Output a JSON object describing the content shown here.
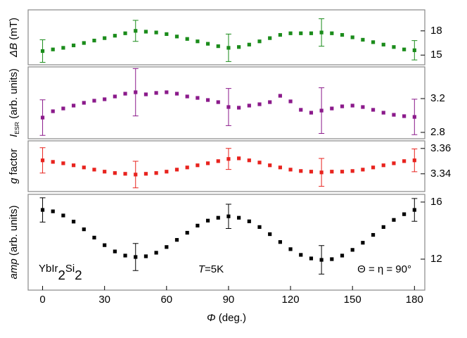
{
  "chart_data": {
    "type": "scatter",
    "x": [
      0,
      5,
      10,
      15,
      20,
      25,
      30,
      35,
      40,
      45,
      50,
      55,
      60,
      65,
      70,
      75,
      80,
      85,
      90,
      95,
      100,
      105,
      110,
      115,
      120,
      125,
      130,
      135,
      140,
      145,
      150,
      155,
      160,
      165,
      170,
      175,
      180
    ],
    "xlim": [
      -7,
      185
    ],
    "xticks": [
      0,
      30,
      60,
      90,
      120,
      150,
      180
    ],
    "xlabel": [
      {
        "text": "Φ",
        "style": "italic"
      },
      {
        "text": " (deg.)"
      }
    ],
    "panels": [
      {
        "ylabel": [
          {
            "text": "ΔB",
            "style": "italic"
          },
          {
            "text": " (mT)"
          }
        ],
        "color": "#1b8c1b",
        "values": [
          15.5,
          15.7,
          15.9,
          16.2,
          16.5,
          16.8,
          17.1,
          17.4,
          17.7,
          18.0,
          17.9,
          17.8,
          17.6,
          17.3,
          17.0,
          16.7,
          16.4,
          16.1,
          15.9,
          16.0,
          16.3,
          16.7,
          17.1,
          17.5,
          17.7,
          17.7,
          17.7,
          17.8,
          17.7,
          17.5,
          17.2,
          16.9,
          16.6,
          16.3,
          16.0,
          15.7,
          15.6
        ],
        "errors": [
          1.4,
          null,
          null,
          null,
          null,
          null,
          null,
          null,
          null,
          1.3,
          null,
          null,
          null,
          null,
          null,
          null,
          null,
          null,
          1.7,
          null,
          null,
          null,
          null,
          null,
          null,
          null,
          null,
          1.7,
          null,
          null,
          null,
          null,
          null,
          null,
          null,
          null,
          1.2
        ],
        "ylim": [
          13.8,
          20.6
        ],
        "yticks": [
          15,
          18
        ]
      },
      {
        "ylabel": [
          {
            "text": "I",
            "style": "italic"
          },
          {
            "text": "ESR",
            "style": "sub"
          },
          {
            "text": " (arb. units)"
          }
        ],
        "color": "#8b1a8b",
        "values": [
          2.975,
          3.05,
          3.083,
          3.117,
          3.15,
          3.175,
          3.192,
          3.225,
          3.258,
          3.275,
          3.25,
          3.267,
          3.275,
          3.258,
          3.225,
          3.208,
          3.183,
          3.158,
          3.1,
          3.092,
          3.117,
          3.133,
          3.158,
          3.233,
          3.167,
          3.067,
          3.033,
          3.058,
          3.083,
          3.108,
          3.117,
          3.1,
          3.067,
          3.033,
          3.008,
          2.992,
          2.983
        ],
        "errors": [
          0.21,
          null,
          null,
          null,
          null,
          null,
          null,
          null,
          null,
          0.28,
          null,
          null,
          null,
          null,
          null,
          null,
          null,
          null,
          0.22,
          null,
          null,
          null,
          null,
          null,
          null,
          null,
          null,
          0.27,
          null,
          null,
          null,
          null,
          null,
          null,
          null,
          null,
          0.21
        ],
        "ylim": [
          2.725,
          3.575
        ],
        "yticks": [
          2.8,
          3.2
        ]
      },
      {
        "ylabel": [
          {
            "text": "g",
            "style": "italic"
          },
          {
            "text": " factor"
          }
        ],
        "color": "#e8231e",
        "values": [
          3.3506,
          3.3494,
          3.3483,
          3.3467,
          3.345,
          3.3433,
          3.3417,
          3.3406,
          3.34,
          3.3394,
          3.34,
          3.3406,
          3.3417,
          3.3433,
          3.345,
          3.3467,
          3.3483,
          3.35,
          3.3517,
          3.3522,
          3.3506,
          3.3489,
          3.3467,
          3.345,
          3.3433,
          3.3422,
          3.3417,
          3.3411,
          3.3417,
          3.3417,
          3.3422,
          3.3433,
          3.345,
          3.3467,
          3.3483,
          3.35,
          3.3506
        ],
        "errors": [
          0.01,
          null,
          null,
          null,
          null,
          null,
          null,
          null,
          null,
          0.0105,
          null,
          null,
          null,
          null,
          null,
          null,
          null,
          null,
          0.0083,
          null,
          null,
          null,
          null,
          null,
          null,
          null,
          null,
          0.011,
          null,
          null,
          null,
          null,
          null,
          null,
          null,
          null,
          0.009
        ],
        "ylim": [
          3.326,
          3.366
        ],
        "yticks": [
          3.34,
          3.36
        ]
      },
      {
        "ylabel": [
          {
            "text": "amp",
            "style": "italic"
          },
          {
            "text": " (arb. units)"
          }
        ],
        "color": "#000000",
        "values": [
          15.45,
          15.35,
          15.06,
          14.63,
          14.09,
          13.51,
          12.98,
          12.54,
          12.25,
          12.15,
          12.2,
          12.45,
          12.85,
          13.35,
          13.85,
          14.35,
          14.7,
          14.9,
          15.0,
          14.9,
          14.65,
          14.25,
          13.75,
          13.2,
          12.7,
          12.3,
          12.05,
          11.95,
          12.0,
          12.25,
          12.65,
          13.15,
          13.7,
          14.25,
          14.75,
          15.15,
          15.45
        ],
        "errors": [
          0.85,
          null,
          null,
          null,
          null,
          null,
          null,
          null,
          null,
          0.95,
          null,
          null,
          null,
          null,
          null,
          null,
          null,
          null,
          0.85,
          null,
          null,
          null,
          null,
          null,
          null,
          null,
          null,
          1.0,
          null,
          null,
          null,
          null,
          null,
          null,
          null,
          null,
          0.8
        ],
        "ylim": [
          9.83,
          16.54
        ],
        "yticks": [
          12,
          16
        ]
      }
    ],
    "annotations": [
      [
        {
          "text": "YbIr"
        },
        {
          "text": "2",
          "style": "sub"
        },
        {
          "text": "Si"
        },
        {
          "text": "2",
          "style": "sub"
        }
      ],
      [
        {
          "text": "T",
          "style": "italic"
        },
        {
          "text": "=5K"
        }
      ],
      [
        {
          "text": "Θ = η = 90°"
        }
      ]
    ]
  }
}
